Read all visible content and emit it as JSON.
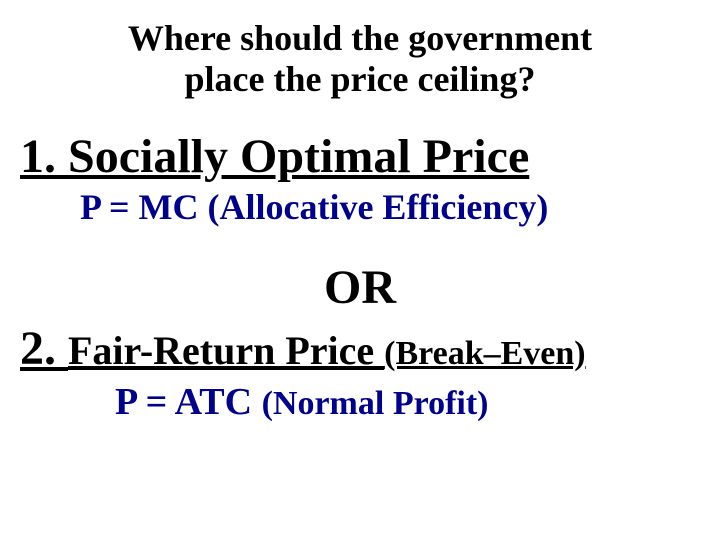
{
  "title_line1": "Where should the government",
  "title_line2": "place the price ceiling?",
  "option1": {
    "heading": "1. Socially Optimal Price",
    "sub": "P = MC (Allocative Efficiency)"
  },
  "separator": "OR",
  "option2": {
    "number": "2. ",
    "main": "Fair-Return Price ",
    "paren": "(Break–Even)",
    "sub_main": "P = ATC ",
    "sub_paren": "(Normal Profit)"
  },
  "colors": {
    "text": "#000000",
    "accent": "#00018c",
    "background": "#ffffff"
  }
}
